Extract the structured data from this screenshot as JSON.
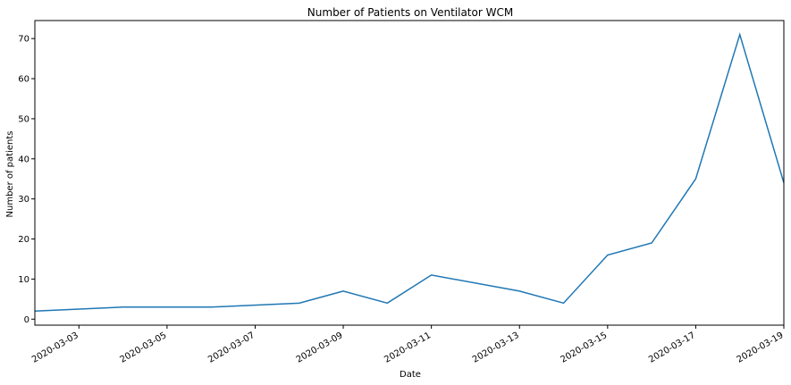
{
  "chart_data": {
    "type": "line",
    "title": "Number of Patients on Ventilator WCM",
    "xlabel": "Date",
    "ylabel": "Number of patients",
    "x": [
      "2020-03-02",
      "2020-03-04",
      "2020-03-06",
      "2020-03-08",
      "2020-03-09",
      "2020-03-10",
      "2020-03-11",
      "2020-03-13",
      "2020-03-14",
      "2020-03-15",
      "2020-03-16",
      "2020-03-17",
      "2020-03-18",
      "2020-03-19"
    ],
    "series": [
      {
        "values": [
          2,
          3,
          3,
          4,
          7,
          4,
          11,
          7,
          4,
          16,
          19,
          35,
          71,
          34
        ]
      }
    ],
    "xlim": [
      "2020-03-02",
      "2020-03-19"
    ],
    "ylim": [
      -1.5,
      74.5
    ],
    "x_ticks": [
      "2020-03-03",
      "2020-03-05",
      "2020-03-07",
      "2020-03-09",
      "2020-03-11",
      "2020-03-13",
      "2020-03-15",
      "2020-03-17",
      "2020-03-19"
    ],
    "y_ticks": [
      0,
      10,
      20,
      30,
      40,
      50,
      60,
      70
    ],
    "line_color": "#1f77b4",
    "grid": false,
    "legend": "none"
  }
}
